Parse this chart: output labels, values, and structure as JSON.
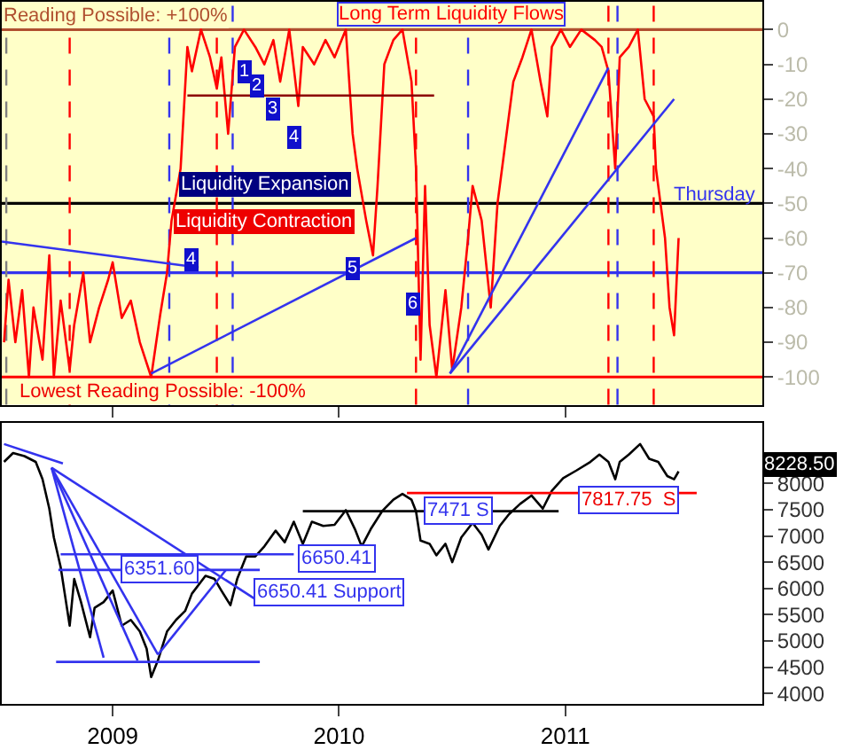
{
  "chart_data": [
    {
      "type": "line",
      "title": "Long Term Liquidity Flows",
      "xlim": [
        2008.51,
        2011.87
      ],
      "ylim": [
        -108,
        8
      ],
      "xticks": [
        {
          "value": 2009,
          "label": null
        },
        {
          "value": 2010,
          "label": null
        },
        {
          "value": 2011,
          "label": null
        }
      ],
      "yticks": [
        0,
        -10,
        -20,
        -30,
        -40,
        -50,
        -60,
        -70,
        -80,
        -90,
        -100
      ],
      "tick_labels": "y",
      "grid": false,
      "series": [
        {
          "color": "#ff0000",
          "x": [
            2008.52,
            2008.54,
            2008.57,
            2008.6,
            2008.63,
            2008.65,
            2008.69,
            2008.72,
            2008.74,
            2008.77,
            2008.81,
            2008.83,
            2008.87,
            2008.9,
            2008.94,
            2008.98,
            2009.0,
            2009.04,
            2009.08,
            2009.12,
            2009.17,
            2009.21,
            2009.24,
            2009.26,
            2009.3,
            2009.33,
            2009.35,
            2009.39,
            2009.43,
            2009.46,
            2009.48,
            2009.51,
            2009.54,
            2009.58,
            2009.63,
            2009.67,
            2009.71,
            2009.74,
            2009.78,
            2009.82,
            2009.84,
            2009.89,
            2009.94,
            2009.98,
            2010.03,
            2010.06,
            2010.08,
            2010.12,
            2010.15,
            2010.17,
            2010.2,
            2010.24,
            2010.28,
            2010.32,
            2010.34,
            2010.36,
            2010.38,
            2010.4,
            2010.43,
            2010.47,
            2010.5,
            2010.54,
            2010.57,
            2010.59,
            2010.63,
            2010.67,
            2010.7,
            2010.73,
            2010.77,
            2010.81,
            2010.85,
            2010.89,
            2010.92,
            2010.94,
            2010.98,
            2011.02,
            2011.07,
            2011.13,
            2011.16,
            2011.19,
            2011.22,
            2011.24,
            2011.28,
            2011.32,
            2011.35,
            2011.39,
            2011.4,
            2011.44,
            2011.46,
            2011.48,
            2011.5
          ],
          "values": [
            -90,
            -72,
            -90,
            -75,
            -100,
            -80,
            -95,
            -65,
            -100,
            -78,
            -98,
            -85,
            -70,
            -90,
            -80,
            -72,
            -67,
            -83,
            -78,
            -90,
            -100,
            -82,
            -70,
            -55,
            -40,
            -5,
            -12,
            0,
            -8,
            -17,
            -8,
            -30,
            -5,
            0,
            -5,
            -10,
            -3,
            -15,
            0,
            -22,
            -5,
            -10,
            -3,
            -8,
            0,
            -30,
            -40,
            -55,
            -65,
            -45,
            -10,
            -3,
            0,
            -15,
            -40,
            -95,
            -45,
            -85,
            -100,
            -75,
            -98,
            -80,
            -60,
            -45,
            -55,
            -80,
            -50,
            -35,
            -15,
            -8,
            0,
            -15,
            -25,
            -5,
            0,
            -5,
            0,
            -3,
            -5,
            -12,
            -40,
            -8,
            -5,
            0,
            -20,
            -25,
            -40,
            -60,
            -80,
            -88,
            -60
          ]
        },
        {
          "color": "#3333ee",
          "x": [
            2008.51,
            2009.38,
            null,
            2009.17,
            2010.34,
            null,
            2010.49,
            2011.19,
            null,
            2010.49,
            2011.48
          ],
          "values": [
            -61,
            -68.5,
            null,
            -99,
            -60,
            null,
            -99,
            -11,
            null,
            -99,
            -20
          ]
        },
        {
          "color": "#8b0000",
          "x": [
            2009.33,
            2010.42
          ],
          "values": [
            -19,
            -19
          ]
        }
      ],
      "ref_lines": [
        {
          "axis": "y",
          "value": 0,
          "color": "#b05030",
          "line_style": "solid"
        },
        {
          "axis": "y",
          "value": -50,
          "color": "#000000",
          "line_style": "solid"
        },
        {
          "axis": "y",
          "value": -70,
          "color": "#3333ee",
          "line_style": "solid"
        },
        {
          "axis": "y",
          "value": -100,
          "color": "#ff0000",
          "line_style": "solid"
        },
        {
          "axis": "x",
          "value": 2008.53,
          "color": "#808080",
          "line_style": "dashed"
        },
        {
          "axis": "x",
          "value": 2008.81,
          "color": "#ff0000",
          "line_style": "dashed"
        },
        {
          "axis": "x",
          "value": 2009.25,
          "color": "#3333ee",
          "line_style": "dashed"
        },
        {
          "axis": "x",
          "value": 2009.46,
          "color": "#ff0000",
          "line_style": "dashed"
        },
        {
          "axis": "x",
          "value": 2009.53,
          "color": "#3333ee",
          "line_style": "dashed"
        },
        {
          "axis": "x",
          "value": 2010.34,
          "color": "#ff0000",
          "line_style": "dashed"
        },
        {
          "axis": "x",
          "value": 2010.57,
          "color": "#3333ee",
          "line_style": "dashed"
        },
        {
          "axis": "x",
          "value": 2011.19,
          "color": "#ff0000",
          "line_style": "dashed"
        },
        {
          "axis": "x",
          "value": 2011.23,
          "color": "#3333ee",
          "line_style": "dashed"
        },
        {
          "axis": "x",
          "value": 2011.39,
          "color": "#ff0000",
          "line_style": "dashed"
        }
      ],
      "annotations": [
        "Reading Possible: +100%",
        "Liquidity Expansion",
        "Liquidity Contraction",
        "Lowest Reading Possible: -100%",
        "Thursday",
        {
          "text": "1",
          "x": 2009.58,
          "y": -12
        },
        {
          "text": "2",
          "x": 2009.64,
          "y": -16
        },
        {
          "text": "3",
          "x": 2009.71,
          "y": -23
        },
        {
          "text": "4",
          "x": 2009.8,
          "y": -31
        },
        {
          "text": "4",
          "x": 2009.35,
          "y": -66
        },
        {
          "text": "5",
          "x": 2010.06,
          "y": -69
        },
        {
          "text": "6",
          "x": 2010.33,
          "y": -79
        }
      ]
    },
    {
      "type": "line",
      "xlim": [
        2008.51,
        2011.87
      ],
      "ylim": [
        3800,
        9150
      ],
      "xticks": [
        2009,
        2010,
        2011
      ],
      "yticks": [
        4000,
        4500,
        5000,
        5500,
        6000,
        6500,
        7000,
        7500,
        8000
      ],
      "grid": false,
      "series": [
        {
          "color": "#000000",
          "x": [
            2008.52,
            2008.56,
            2008.61,
            2008.66,
            2008.69,
            2008.72,
            2008.74,
            2008.77,
            2008.79,
            2008.81,
            2008.83,
            2008.86,
            2008.9,
            2008.92,
            2008.96,
            2009.0,
            2009.04,
            2009.08,
            2009.12,
            2009.15,
            2009.17,
            2009.2,
            2009.24,
            2009.28,
            2009.32,
            2009.35,
            2009.41,
            2009.45,
            2009.48,
            2009.52,
            2009.55,
            2009.59,
            2009.63,
            2009.67,
            2009.72,
            2009.76,
            2009.8,
            2009.84,
            2009.88,
            2009.93,
            2009.98,
            2010.03,
            2010.07,
            2010.1,
            2010.14,
            2010.19,
            2010.24,
            2010.28,
            2010.32,
            2010.34,
            2010.36,
            2010.4,
            2010.43,
            2010.47,
            2010.5,
            2010.54,
            2010.59,
            2010.63,
            2010.66,
            2010.71,
            2010.75,
            2010.8,
            2010.85,
            2010.9,
            2010.94,
            2010.99,
            2011.05,
            2011.11,
            2011.15,
            2011.19,
            2011.22,
            2011.24,
            2011.28,
            2011.33,
            2011.37,
            2011.41,
            2011.45,
            2011.48,
            2011.5
          ],
          "values": [
            8410,
            8580,
            8520,
            8410,
            8080,
            7520,
            6970,
            6410,
            5850,
            5290,
            6180,
            5740,
            5070,
            5630,
            5740,
            5960,
            5290,
            5400,
            5180,
            4850,
            4310,
            4630,
            5180,
            5400,
            5570,
            5900,
            6240,
            6180,
            5960,
            5680,
            6180,
            6610,
            6610,
            6800,
            7100,
            6880,
            7270,
            6850,
            7270,
            7190,
            7210,
            7490,
            7130,
            6800,
            7130,
            7470,
            7690,
            7800,
            7690,
            7470,
            6910,
            6850,
            6630,
            6850,
            6500,
            6970,
            7250,
            7020,
            6740,
            7190,
            7410,
            7610,
            7770,
            7520,
            7860,
            8100,
            8250,
            8410,
            8550,
            8410,
            8080,
            8410,
            8550,
            8750,
            8470,
            8410,
            8140,
            8080,
            8228.5
          ]
        },
        {
          "color": "#ff0000",
          "x": [
            2010.3,
            2011.58
          ],
          "values": [
            7817.75,
            7817.75
          ]
        },
        {
          "color": "#000000",
          "x": [
            2009.84,
            2010.97
          ],
          "values": [
            7471,
            7471
          ]
        },
        {
          "color": "#3333ee",
          "x": [
            2008.77,
            2009.8,
            null,
            2008.76,
            2009.65,
            null,
            2008.73,
            2008.96,
            null,
            2008.73,
            2009.11,
            null,
            2008.73,
            2009.2,
            null,
            2008.73,
            2009.65,
            null,
            2009.2,
            2009.5,
            null,
            2008.52,
            2008.78
          ],
          "values": [
            6650.41,
            6650.41,
            null,
            6351.6,
            6351.6,
            null,
            8300,
            4680,
            null,
            8300,
            4625,
            null,
            8300,
            4740,
            null,
            8300,
            5740,
            null,
            4740,
            6350,
            null,
            8750,
            8380
          ]
        },
        {
          "color": "#3333ee",
          "x": [
            2008.75,
            2009.65
          ],
          "values": [
            4600,
            4600
          ]
        }
      ],
      "annotations": [
        {
          "text": "6351.60",
          "x": 2009.21,
          "y": 6351.6
        },
        "6650.41",
        "6650.41 Support",
        {
          "text": "7471 S",
          "x": 2010.53,
          "y": 7471
        },
        {
          "text": "7817.75  S",
          "x": 2011.28,
          "y": 7700
        },
        "8228.50"
      ]
    }
  ]
}
